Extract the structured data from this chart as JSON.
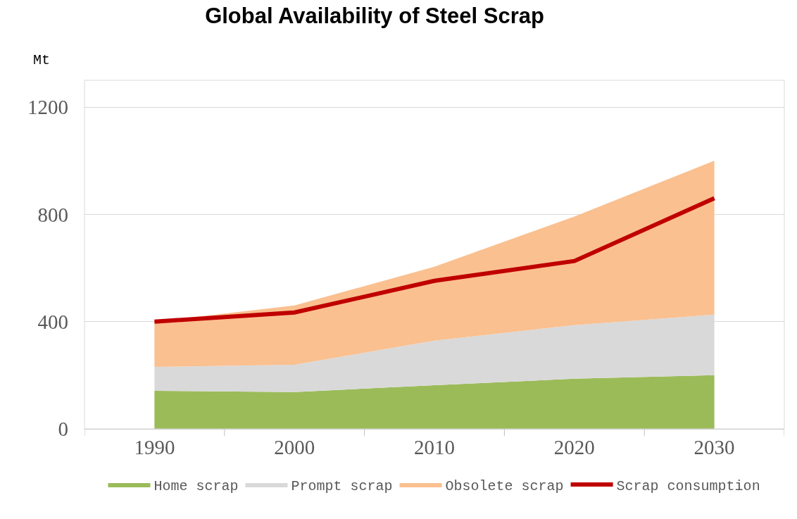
{
  "chart_data": {
    "type": "area",
    "title": "Global Availability of Steel Scrap",
    "ylabel": "Mt",
    "stacked": true,
    "categories": [
      "1990",
      "2000",
      "2010",
      "2020",
      "2030"
    ],
    "series": [
      {
        "name": "Home scrap",
        "color": "#9bbb59",
        "values": [
          142,
          137,
          163,
          187,
          200
        ]
      },
      {
        "name": "Prompt scrap",
        "color": "#d9d9d9",
        "values": [
          89,
          102,
          166,
          200,
          226
        ]
      },
      {
        "name": "Obsolete scrap",
        "color": "#fac090",
        "values": [
          169,
          221,
          276,
          405,
          574
        ]
      },
      {
        "name": "Scrap consumption",
        "type": "line",
        "color": "#c00000",
        "values": [
          400,
          434,
          552,
          626,
          860
        ]
      }
    ],
    "ylim": [
      0,
      1300
    ],
    "yticks": [
      0,
      400,
      800,
      1200
    ],
    "grid": "y",
    "legend": "bottom"
  }
}
